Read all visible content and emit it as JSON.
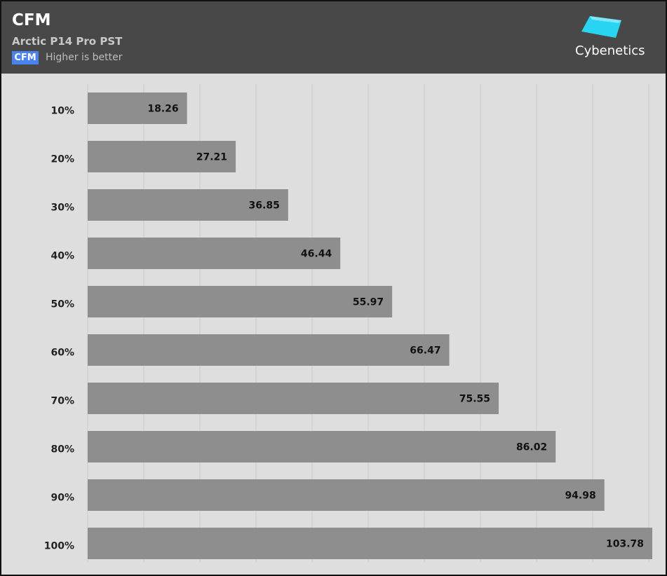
{
  "header": {
    "title": "CFM",
    "subtitle": "Arctic P14 Pro PST",
    "metric_badge": "CFM",
    "note": "Higher is better",
    "brand": "Cybenetics"
  },
  "colors": {
    "header_bg": "#484848",
    "plot_bg": "#dedede",
    "bar": "#8e8e8e",
    "badge": "#4a82f0",
    "logo_accent": "#29d3f2"
  },
  "icons": {
    "logo": "cybenetics-logo-icon"
  },
  "chart_data": {
    "type": "bar",
    "orientation": "horizontal",
    "categories": [
      "10%",
      "20%",
      "30%",
      "40%",
      "50%",
      "60%",
      "70%",
      "80%",
      "90%",
      "100%"
    ],
    "values": [
      18.26,
      27.21,
      36.85,
      46.44,
      55.97,
      66.47,
      75.55,
      86.02,
      94.98,
      103.78
    ],
    "value_labels": [
      "18.26",
      "27.21",
      "36.85",
      "46.44",
      "55.97",
      "66.47",
      "75.55",
      "86.02",
      "94.98",
      "103.78"
    ],
    "title": "CFM",
    "xlim": [
      0,
      103.78
    ],
    "grid": true,
    "legend": "none",
    "value_label_position": "inside-end"
  }
}
